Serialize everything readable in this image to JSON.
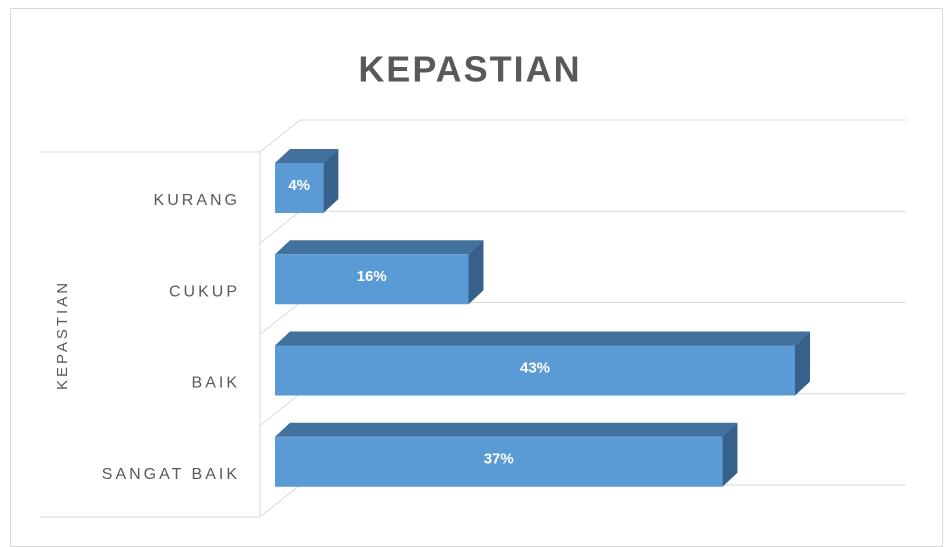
{
  "chart_data": {
    "type": "bar3d_horizontal",
    "title": "KEPASTIAN",
    "y_axis_label": "KEPASTIAN",
    "categories": [
      "KURANG",
      "CUKUP",
      "BAIK",
      "SANGAT BAIK"
    ],
    "values": [
      4,
      16,
      43,
      37
    ],
    "value_labels": [
      "4%",
      "16%",
      "43%",
      "37%"
    ],
    "color": "#5b9bd5",
    "grid": true
  }
}
